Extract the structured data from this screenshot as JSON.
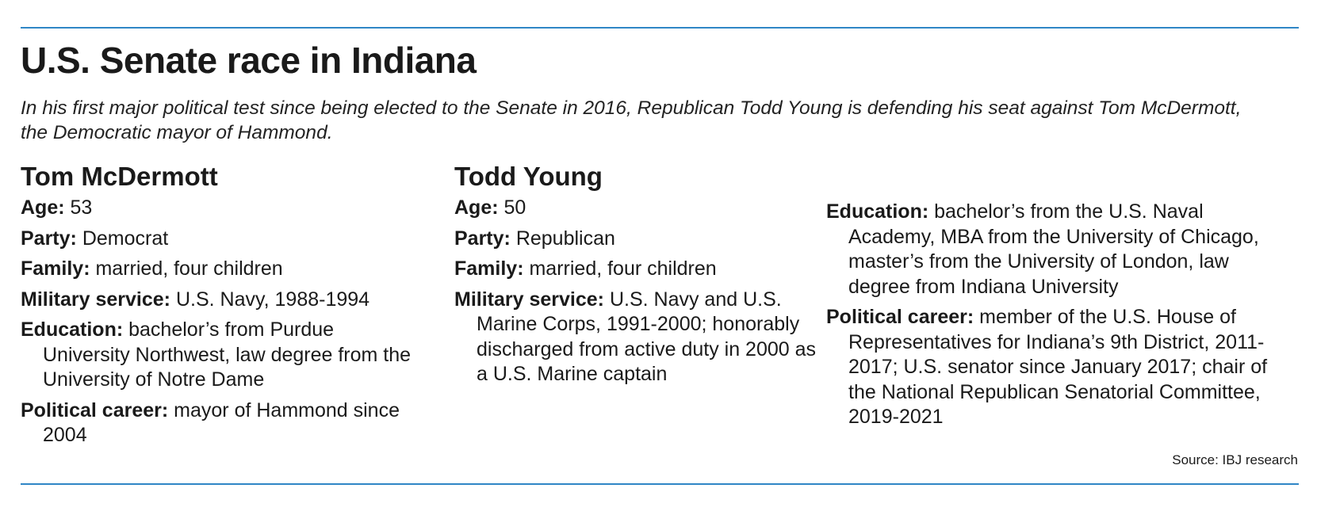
{
  "title": "U.S. Senate race in Indiana",
  "subtitle": "In his first major political test since being elected to the Senate in 2016, Republican Todd Young is defending his seat against Tom McDermott, the Democratic mayor of Hammond.",
  "mcdermott": {
    "name": "Tom McDermott",
    "age_label": "Age:",
    "age": " 53",
    "party_label": "Party:",
    "party": " Democrat",
    "family_label": "Family:",
    "family": " married, four children",
    "military_label": "Military service:",
    "military": " U.S. Navy, 1988-1994",
    "education_label": "Education:",
    "education": " bachelor’s from Purdue University Northwest, law degree from the University of Notre Dame",
    "career_label": "Political career:",
    "career": " mayor of Hammond since 2004"
  },
  "young": {
    "name": "Todd Young",
    "age_label": "Age:",
    "age": " 50",
    "party_label": "Party:",
    "party": " Republican",
    "family_label": "Family:",
    "family": " married, four children",
    "military_label": "Military service:",
    "military": " U.S. Navy and U.S. Marine Corps, 1991-2000; honorably discharged from active duty in 2000 as a U.S. Marine captain",
    "education_label": "Education:",
    "education": " bachelor’s from the U.S. Naval Academy, MBA from the University of Chicago, master’s from the University of London, law degree from Indiana University",
    "career_label": "Political career:",
    "career": " member of the U.S. House of Representatives for Indiana’s 9th District, 2011-2017; U.S. senator since January 2017; chair of the National Republican Senatorial Committee, 2019-2021"
  },
  "source": "Source: IBJ research",
  "accent_color": "#2f86c6"
}
